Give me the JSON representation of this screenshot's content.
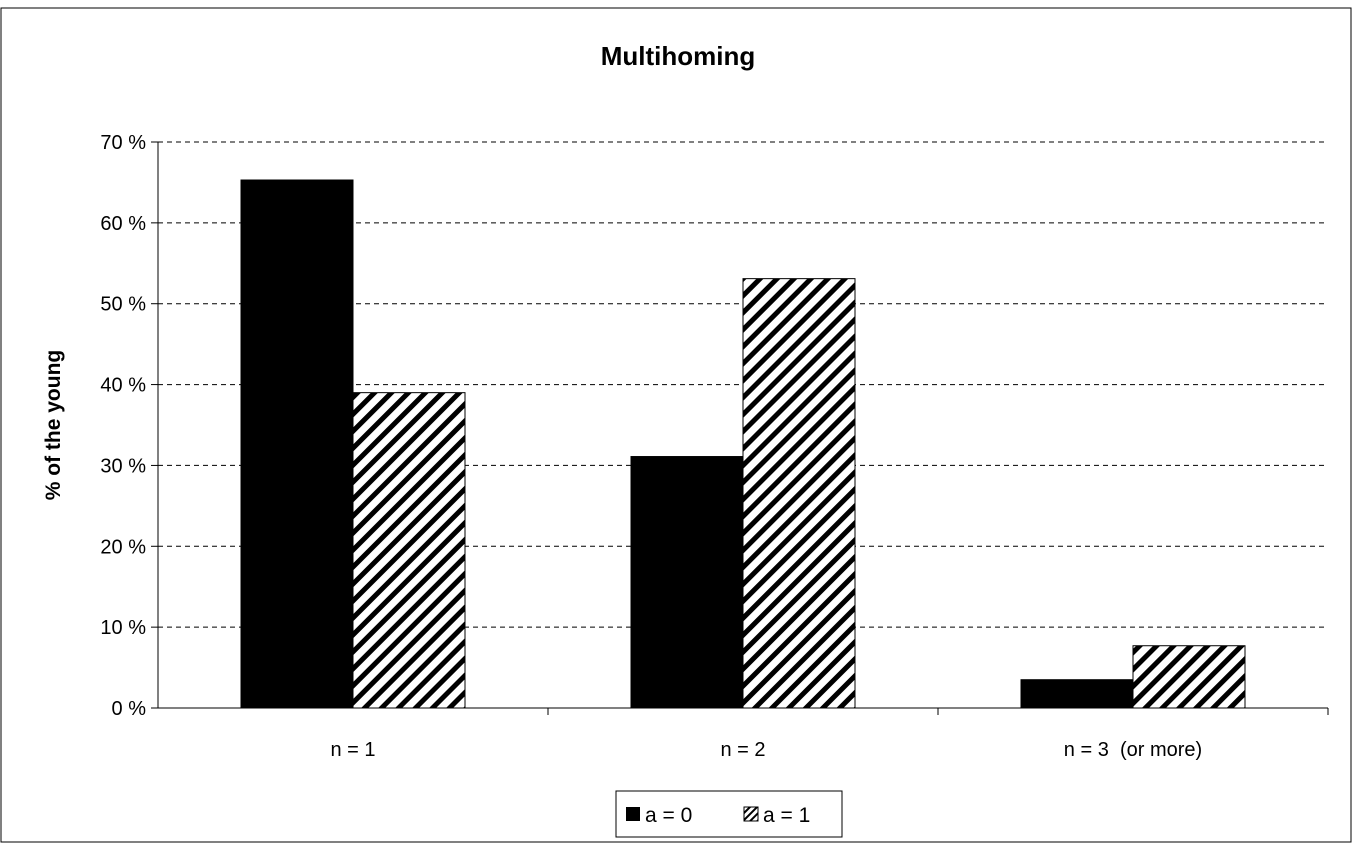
{
  "chart_data": {
    "type": "bar",
    "title": "Multihoming",
    "xlabel": "",
    "ylabel": "% of the young",
    "categories": [
      "n = 1",
      "n = 2",
      "n = 3  (or more)"
    ],
    "series": [
      {
        "name": "a = 0",
        "values": [
          65.3,
          31.1,
          3.5
        ],
        "fill": "solid",
        "color": "#000000"
      },
      {
        "name": "a = 1",
        "values": [
          39.0,
          53.1,
          7.7
        ],
        "fill": "diagonal-hatch",
        "color": "#000000"
      }
    ],
    "ylim": [
      0,
      70
    ],
    "yticks": [
      0,
      10,
      20,
      30,
      40,
      50,
      60,
      70
    ],
    "ytick_labels": [
      "0 %",
      "10 %",
      "20 %",
      "30 %",
      "40 %",
      "50 %",
      "60 %",
      "70 %"
    ],
    "grid": "dashed-horizontal",
    "legend_position": "bottom-center"
  }
}
